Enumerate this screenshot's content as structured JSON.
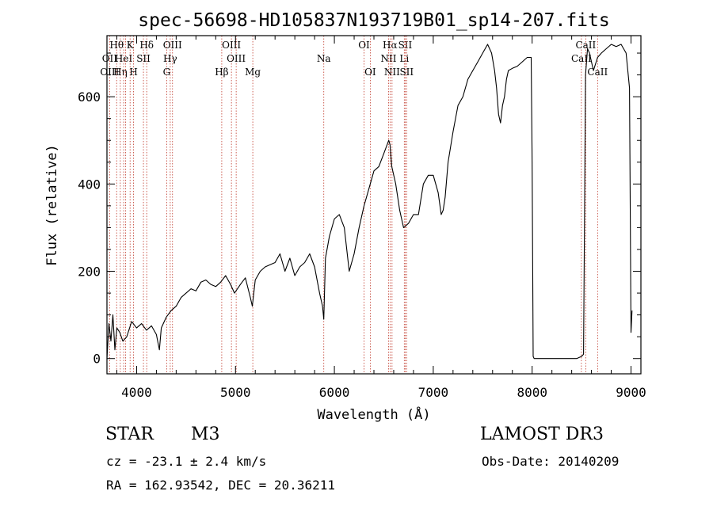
{
  "chart_data": {
    "type": "line",
    "title": "spec-56698-HD105837N193719B01_sp14-207.fits",
    "xlabel": "Wavelength (Å)",
    "ylabel": "Flux (relative)",
    "xlim": [
      3700,
      9100
    ],
    "ylim": [
      -35,
      740
    ],
    "xticks": [
      4000,
      5000,
      6000,
      7000,
      8000,
      9000
    ],
    "yticks": [
      0,
      200,
      400,
      600
    ],
    "grid": false,
    "series": [
      {
        "name": "spectrum",
        "x": [
          3700,
          3720,
          3740,
          3760,
          3780,
          3800,
          3830,
          3860,
          3900,
          3950,
          4000,
          4050,
          4100,
          4150,
          4200,
          4230,
          4250,
          4300,
          4350,
          4400,
          4450,
          4500,
          4550,
          4600,
          4650,
          4700,
          4750,
          4800,
          4850,
          4900,
          4950,
          4990,
          5050,
          5100,
          5150,
          5170,
          5200,
          5250,
          5300,
          5350,
          5400,
          5450,
          5500,
          5550,
          5600,
          5650,
          5700,
          5750,
          5800,
          5850,
          5880,
          5893,
          5910,
          5950,
          6000,
          6050,
          6100,
          6150,
          6200,
          6250,
          6300,
          6350,
          6400,
          6450,
          6500,
          6550,
          6563,
          6580,
          6620,
          6660,
          6700,
          6750,
          6800,
          6850,
          6900,
          6950,
          7000,
          7050,
          7080,
          7100,
          7120,
          7150,
          7200,
          7250,
          7300,
          7350,
          7400,
          7450,
          7500,
          7550,
          7590,
          7620,
          7640,
          7660,
          7680,
          7700,
          7720,
          7740,
          7760,
          7800,
          7850,
          7900,
          7950,
          7990,
          8000,
          8010,
          8020,
          8050,
          8100,
          8200,
          8300,
          8400,
          8450,
          8500,
          8520,
          8540,
          8560,
          8580,
          8600,
          8620,
          8662,
          8700,
          8750,
          8800,
          8850,
          8900,
          8950,
          8985,
          9000,
          9010
        ],
        "values": [
          0,
          80,
          40,
          100,
          20,
          70,
          60,
          40,
          50,
          85,
          70,
          80,
          65,
          75,
          55,
          20,
          70,
          95,
          110,
          120,
          140,
          150,
          160,
          155,
          175,
          180,
          170,
          165,
          175,
          190,
          170,
          150,
          170,
          185,
          140,
          120,
          180,
          200,
          210,
          215,
          220,
          240,
          200,
          230,
          190,
          210,
          220,
          240,
          210,
          150,
          120,
          90,
          230,
          280,
          320,
          330,
          300,
          200,
          240,
          300,
          350,
          390,
          430,
          440,
          470,
          500,
          490,
          440,
          400,
          340,
          300,
          310,
          330,
          330,
          400,
          420,
          420,
          380,
          330,
          340,
          370,
          450,
          520,
          580,
          600,
          640,
          660,
          680,
          700,
          720,
          700,
          660,
          620,
          560,
          540,
          580,
          600,
          640,
          660,
          665,
          670,
          680,
          690,
          690,
          450,
          5,
          0,
          0,
          0,
          0,
          0,
          0,
          0,
          5,
          10,
          650,
          710,
          700,
          680,
          660,
          690,
          700,
          710,
          720,
          715,
          720,
          700,
          620,
          60,
          110
        ]
      }
    ],
    "lines": [
      {
        "x": 3727,
        "row1": "",
        "row2": "OII",
        "row3": "OIII"
      },
      {
        "x": 3798,
        "row1": "Hθ",
        "row2": "",
        "row3": ""
      },
      {
        "x": 3835,
        "row1": "",
        "row2": "",
        "row3": "Hη"
      },
      {
        "x": 3869,
        "row1": "",
        "row2": "HeI",
        "row3": ""
      },
      {
        "x": 3889,
        "row1": "",
        "row2": "",
        "row3": ""
      },
      {
        "x": 3934,
        "row1": "K",
        "row2": "",
        "row3": ""
      },
      {
        "x": 3969,
        "row1": "",
        "row2": "",
        "row3": "H"
      },
      {
        "x": 4069,
        "row1": "",
        "row2": "SII",
        "row3": ""
      },
      {
        "x": 4102,
        "row1": "Hδ",
        "row2": "",
        "row3": ""
      },
      {
        "x": 4304,
        "row1": "",
        "row2": "",
        "row3": "G"
      },
      {
        "x": 4340,
        "row1": "",
        "row2": "Hγ",
        "row3": ""
      },
      {
        "x": 4363,
        "row1": "OIII",
        "row2": "",
        "row3": ""
      },
      {
        "x": 4861,
        "row1": "",
        "row2": "",
        "row3": "Hβ"
      },
      {
        "x": 4959,
        "row1": "OIII",
        "row2": "",
        "row3": ""
      },
      {
        "x": 5007,
        "row1": "",
        "row2": "OIII",
        "row3": ""
      },
      {
        "x": 5175,
        "row1": "",
        "row2": "",
        "row3": "Mg"
      },
      {
        "x": 5893,
        "row1": "",
        "row2": "Na",
        "row3": ""
      },
      {
        "x": 6300,
        "row1": "OI",
        "row2": "",
        "row3": ""
      },
      {
        "x": 6363,
        "row1": "",
        "row2": "",
        "row3": "OI"
      },
      {
        "x": 6548,
        "row1": "",
        "row2": "NII",
        "row3": ""
      },
      {
        "x": 6563,
        "row1": "Hα",
        "row2": "",
        "row3": ""
      },
      {
        "x": 6583,
        "row1": "",
        "row2": "",
        "row3": "NII"
      },
      {
        "x": 6707,
        "row1": "",
        "row2": "Li",
        "row3": ""
      },
      {
        "x": 6716,
        "row1": "SII",
        "row2": "",
        "row3": ""
      },
      {
        "x": 6731,
        "row1": "",
        "row2": "",
        "row3": "SII"
      },
      {
        "x": 8498,
        "row1": "",
        "row2": "CaII",
        "row3": ""
      },
      {
        "x": 8542,
        "row1": "CaII",
        "row2": "",
        "row3": ""
      },
      {
        "x": 8662,
        "row1": "",
        "row2": "",
        "row3": "CaII"
      }
    ]
  },
  "info": {
    "object_class": "STAR",
    "subclass": "M3",
    "survey": "LAMOST DR3",
    "cz": "cz = -23.1 ± 2.4 km/s",
    "obs_date": "Obs-Date: 20140209",
    "coords": "RA = 162.93542, DEC =  20.36211"
  },
  "colors": {
    "line_marker": "#c0392b",
    "spectrum": "#000000"
  }
}
